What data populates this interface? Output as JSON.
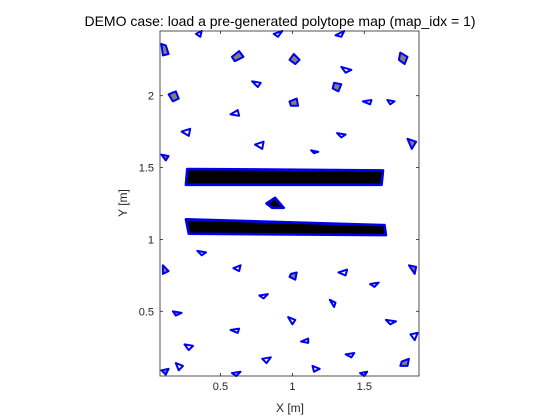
{
  "chart_data": {
    "type": "polygon-map",
    "title": "DEMO case: load a pre-generated polytope map (map_idx = 1)",
    "xlabel": "X [m]",
    "ylabel": "Y [m]",
    "xlim": [
      0.08,
      1.88
    ],
    "ylim": [
      0.05,
      2.45
    ],
    "xticks": [
      0.5,
      1,
      1.5
    ],
    "yticks": [
      0.5,
      1,
      1.5,
      2
    ],
    "xtick_labels": [
      "0.5",
      "1",
      "1.5"
    ],
    "ytick_labels": [
      "0.5",
      "1",
      "1.5",
      "2"
    ],
    "grid": false,
    "colors": {
      "edge": "#0000ee",
      "fill_dark": "#000000",
      "fill_gray": "#808080",
      "fill_none": "#ffffff"
    },
    "polygons": [
      {
        "fill": "black",
        "points": [
          [
            0.26,
            1.38
          ],
          [
            1.62,
            1.38
          ],
          [
            1.63,
            1.48
          ],
          [
            0.27,
            1.49
          ]
        ]
      },
      {
        "fill": "black",
        "points": [
          [
            0.28,
            1.04
          ],
          [
            1.65,
            1.03
          ],
          [
            1.64,
            1.1
          ],
          [
            0.26,
            1.14
          ]
        ]
      },
      {
        "fill": "black",
        "points": [
          [
            0.82,
            1.25
          ],
          [
            0.88,
            1.29
          ],
          [
            0.94,
            1.22
          ],
          [
            0.86,
            1.22
          ]
        ]
      },
      {
        "fill": "none",
        "points": [
          [
            0.33,
            2.43
          ],
          [
            0.37,
            2.45
          ],
          [
            0.36,
            2.41
          ]
        ]
      },
      {
        "fill": "none",
        "points": [
          [
            0.87,
            2.43
          ],
          [
            0.93,
            2.45
          ],
          [
            0.9,
            2.41
          ]
        ]
      },
      {
        "fill": "none",
        "points": [
          [
            1.3,
            2.42
          ],
          [
            1.36,
            2.45
          ],
          [
            1.34,
            2.41
          ]
        ]
      },
      {
        "fill": "gray",
        "points": [
          [
            0.09,
            2.36
          ],
          [
            0.12,
            2.35
          ],
          [
            0.14,
            2.29
          ],
          [
            0.1,
            2.28
          ]
        ]
      },
      {
        "fill": "gray",
        "points": [
          [
            0.58,
            2.27
          ],
          [
            0.63,
            2.31
          ],
          [
            0.66,
            2.27
          ],
          [
            0.6,
            2.24
          ]
        ]
      },
      {
        "fill": "gray",
        "points": [
          [
            1.01,
            2.29
          ],
          [
            1.05,
            2.25
          ],
          [
            1.02,
            2.22
          ],
          [
            0.98,
            2.25
          ]
        ]
      },
      {
        "fill": "gray",
        "points": [
          [
            1.75,
            2.3
          ],
          [
            1.8,
            2.27
          ],
          [
            1.78,
            2.22
          ],
          [
            1.74,
            2.25
          ]
        ]
      },
      {
        "fill": "none",
        "points": [
          [
            1.34,
            2.2
          ],
          [
            1.41,
            2.18
          ],
          [
            1.37,
            2.16
          ]
        ]
      },
      {
        "fill": "none",
        "points": [
          [
            0.72,
            2.1
          ],
          [
            0.78,
            2.09
          ],
          [
            0.76,
            2.06
          ]
        ]
      },
      {
        "fill": "gray",
        "points": [
          [
            1.29,
            2.09
          ],
          [
            1.34,
            2.08
          ],
          [
            1.32,
            2.03
          ],
          [
            1.28,
            2.05
          ]
        ]
      },
      {
        "fill": "gray",
        "points": [
          [
            0.14,
            2.01
          ],
          [
            0.19,
            2.03
          ],
          [
            0.21,
            1.98
          ],
          [
            0.17,
            1.96
          ]
        ]
      },
      {
        "fill": "gray",
        "points": [
          [
            0.98,
            1.96
          ],
          [
            1.03,
            1.98
          ],
          [
            1.04,
            1.93
          ],
          [
            0.99,
            1.93
          ]
        ]
      },
      {
        "fill": "none",
        "points": [
          [
            1.49,
            1.96
          ],
          [
            1.55,
            1.97
          ],
          [
            1.54,
            1.94
          ]
        ]
      },
      {
        "fill": "none",
        "points": [
          [
            1.66,
            1.97
          ],
          [
            1.71,
            1.96
          ],
          [
            1.68,
            1.94
          ]
        ]
      },
      {
        "fill": "none",
        "points": [
          [
            0.57,
            1.87
          ],
          [
            0.62,
            1.9
          ],
          [
            0.63,
            1.86
          ]
        ]
      },
      {
        "fill": "none",
        "points": [
          [
            0.23,
            1.75
          ],
          [
            0.29,
            1.77
          ],
          [
            0.28,
            1.72
          ]
        ]
      },
      {
        "fill": "none",
        "points": [
          [
            1.31,
            1.74
          ],
          [
            1.37,
            1.73
          ],
          [
            1.34,
            1.71
          ]
        ]
      },
      {
        "fill": "none",
        "points": [
          [
            0.74,
            1.66
          ],
          [
            0.8,
            1.68
          ],
          [
            0.79,
            1.63
          ]
        ]
      },
      {
        "fill": "gray",
        "points": [
          [
            1.8,
            1.7
          ],
          [
            1.86,
            1.68
          ],
          [
            1.83,
            1.63
          ]
        ]
      },
      {
        "fill": "none",
        "points": [
          [
            1.13,
            1.62
          ],
          [
            1.18,
            1.61
          ],
          [
            1.15,
            1.6
          ]
        ]
      },
      {
        "fill": "gray",
        "points": [
          [
            0.09,
            1.59
          ],
          [
            0.14,
            1.58
          ],
          [
            0.12,
            1.55
          ]
        ]
      },
      {
        "fill": "none",
        "points": [
          [
            0.34,
            0.92
          ],
          [
            0.4,
            0.91
          ],
          [
            0.37,
            0.89
          ]
        ]
      },
      {
        "fill": "gray",
        "points": [
          [
            0.1,
            0.82
          ],
          [
            0.14,
            0.78
          ],
          [
            0.1,
            0.76
          ]
        ]
      },
      {
        "fill": "none",
        "points": [
          [
            0.59,
            0.8
          ],
          [
            0.64,
            0.82
          ],
          [
            0.63,
            0.78
          ]
        ]
      },
      {
        "fill": "gray",
        "points": [
          [
            0.99,
            0.76
          ],
          [
            1.03,
            0.77
          ],
          [
            1.02,
            0.72
          ],
          [
            0.98,
            0.74
          ]
        ]
      },
      {
        "fill": "none",
        "points": [
          [
            1.32,
            0.77
          ],
          [
            1.38,
            0.79
          ],
          [
            1.37,
            0.75
          ]
        ]
      },
      {
        "fill": "gray",
        "points": [
          [
            1.81,
            0.82
          ],
          [
            1.86,
            0.81
          ],
          [
            1.85,
            0.76
          ]
        ]
      },
      {
        "fill": "none",
        "points": [
          [
            1.54,
            0.69
          ],
          [
            1.6,
            0.7
          ],
          [
            1.57,
            0.67
          ]
        ]
      },
      {
        "fill": "none",
        "points": [
          [
            0.77,
            0.61
          ],
          [
            0.83,
            0.62
          ],
          [
            0.8,
            0.59
          ]
        ]
      },
      {
        "fill": "none",
        "points": [
          [
            1.26,
            0.58
          ],
          [
            1.3,
            0.56
          ],
          [
            1.29,
            0.53
          ]
        ]
      },
      {
        "fill": "gray",
        "points": [
          [
            0.17,
            0.5
          ],
          [
            0.23,
            0.49
          ],
          [
            0.19,
            0.47
          ]
        ]
      },
      {
        "fill": "none",
        "points": [
          [
            0.97,
            0.46
          ],
          [
            1.02,
            0.44
          ],
          [
            1.0,
            0.41
          ]
        ]
      },
      {
        "fill": "none",
        "points": [
          [
            1.65,
            0.44
          ],
          [
            1.72,
            0.43
          ],
          [
            1.68,
            0.41
          ]
        ]
      },
      {
        "fill": "none",
        "points": [
          [
            0.57,
            0.37
          ],
          [
            0.63,
            0.38
          ],
          [
            0.62,
            0.35
          ]
        ]
      },
      {
        "fill": "none",
        "points": [
          [
            1.82,
            0.34
          ],
          [
            1.87,
            0.35
          ],
          [
            1.85,
            0.3
          ]
        ]
      },
      {
        "fill": "none",
        "points": [
          [
            1.06,
            0.29
          ],
          [
            1.11,
            0.31
          ],
          [
            1.11,
            0.28
          ]
        ]
      },
      {
        "fill": "none",
        "points": [
          [
            0.25,
            0.27
          ],
          [
            0.31,
            0.26
          ],
          [
            0.28,
            0.23
          ]
        ]
      },
      {
        "fill": "none",
        "points": [
          [
            1.37,
            0.2
          ],
          [
            1.43,
            0.21
          ],
          [
            1.41,
            0.18
          ]
        ]
      },
      {
        "fill": "none",
        "points": [
          [
            0.79,
            0.17
          ],
          [
            0.85,
            0.18
          ],
          [
            0.82,
            0.14
          ]
        ]
      },
      {
        "fill": "none",
        "points": [
          [
            0.19,
            0.14
          ],
          [
            0.24,
            0.12
          ],
          [
            0.21,
            0.09
          ]
        ]
      },
      {
        "fill": "none",
        "points": [
          [
            1.14,
            0.12
          ],
          [
            1.19,
            0.1
          ],
          [
            1.15,
            0.08
          ]
        ]
      },
      {
        "fill": "gray",
        "points": [
          [
            1.76,
            0.15
          ],
          [
            1.81,
            0.17
          ],
          [
            1.8,
            0.12
          ],
          [
            1.75,
            0.12
          ]
        ]
      },
      {
        "fill": "gray",
        "points": [
          [
            0.09,
            0.09
          ],
          [
            0.14,
            0.1
          ],
          [
            0.12,
            0.06
          ]
        ]
      },
      {
        "fill": "none",
        "points": [
          [
            0.58,
            0.07
          ],
          [
            0.64,
            0.08
          ],
          [
            0.61,
            0.05
          ]
        ]
      },
      {
        "fill": "none",
        "points": [
          [
            1.47,
            0.07
          ],
          [
            1.52,
            0.08
          ],
          [
            1.5,
            0.05
          ]
        ]
      }
    ]
  }
}
